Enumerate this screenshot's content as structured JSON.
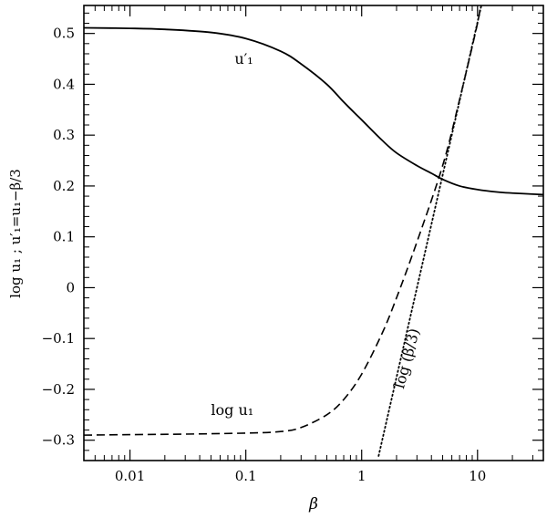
{
  "chart_data": {
    "type": "line",
    "xscale": "log",
    "xlim": [
      0.004,
      37
    ],
    "ylim": [
      -0.34,
      0.555
    ],
    "xlabel": "β",
    "ylabel": "log u₁ ;   u′₁=u₁−β/3",
    "grid": false,
    "x_ticks": [
      {
        "value": 0.01,
        "label": "0.01"
      },
      {
        "value": 0.1,
        "label": "0.1"
      },
      {
        "value": 1,
        "label": "1"
      },
      {
        "value": 10,
        "label": "10"
      }
    ],
    "y_ticks": [
      {
        "value": -0.3,
        "label": "−0.3"
      },
      {
        "value": -0.2,
        "label": "−0.2"
      },
      {
        "value": -0.1,
        "label": "−0.1"
      },
      {
        "value": 0,
        "label": "0"
      },
      {
        "value": 0.1,
        "label": "0.1"
      },
      {
        "value": 0.2,
        "label": "0.2"
      },
      {
        "value": 0.3,
        "label": "0.3"
      },
      {
        "value": 0.4,
        "label": "0.4"
      },
      {
        "value": 0.5,
        "label": "0.5"
      }
    ],
    "series": [
      {
        "key": "uprime",
        "name": "u′₁",
        "style": "solid",
        "x": [
          0.004,
          0.01,
          0.02,
          0.05,
          0.1,
          0.2,
          0.3,
          0.5,
          0.7,
          1,
          1.5,
          2,
          3,
          4,
          5,
          7,
          10,
          15,
          20,
          30,
          37
        ],
        "y": [
          0.511,
          0.51,
          0.508,
          0.502,
          0.49,
          0.465,
          0.44,
          0.4,
          0.365,
          0.33,
          0.29,
          0.265,
          0.24,
          0.225,
          0.213,
          0.2,
          0.193,
          0.188,
          0.186,
          0.184,
          0.183
        ]
      },
      {
        "key": "logu",
        "name": "log u₁",
        "style": "dashed",
        "x": [
          0.004,
          0.01,
          0.03,
          0.1,
          0.2,
          0.3,
          0.5,
          0.7,
          1,
          1.5,
          2,
          3,
          5,
          7,
          10,
          10.5
        ],
        "y": [
          -0.29,
          -0.289,
          -0.288,
          -0.286,
          -0.283,
          -0.275,
          -0.25,
          -0.22,
          -0.17,
          -0.09,
          -0.02,
          0.09,
          0.24,
          0.37,
          0.52,
          0.555
        ]
      },
      {
        "key": "logbeta",
        "name": "log (β/3)",
        "style": "dotted",
        "x": [
          1.4,
          37
        ],
        "y": [
          -0.331,
          1.09
        ]
      }
    ],
    "annotations": [
      {
        "text": "u′₁",
        "x": 0.08,
        "y": 0.44
      },
      {
        "text": "log  u₁",
        "x": 0.05,
        "y": -0.25
      },
      {
        "text": "log (β/3)",
        "x": 2.3,
        "y": -0.2,
        "rotation_deg": -75
      }
    ]
  }
}
